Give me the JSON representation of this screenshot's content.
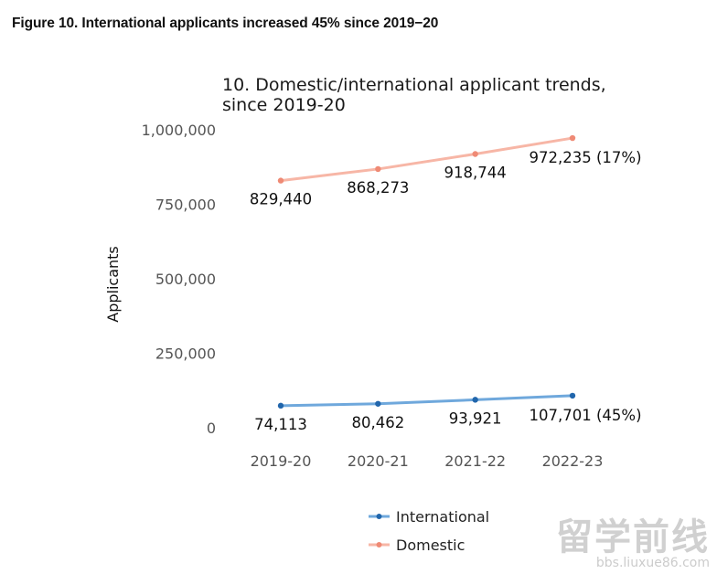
{
  "figure": {
    "caption": "Figure 10. International applicants increased 45% since 2019−20"
  },
  "chart_data": {
    "type": "line",
    "title_lines": [
      "10. Domestic/international applicant trends,",
      "since 2019-20"
    ],
    "ylabel": "Applicants",
    "xlabel": "",
    "categories": [
      "2019-20",
      "2020-21",
      "2021-22",
      "2022-23"
    ],
    "ylim": [
      0,
      1000000
    ],
    "yticks": [
      0,
      250000,
      500000,
      750000,
      1000000
    ],
    "ytick_labels": [
      "0",
      "250,000",
      "500,000",
      "750,000",
      "1,000,000"
    ],
    "grid": false,
    "legend_position": "bottom",
    "series": [
      {
        "name": "International",
        "color": "#6fa8dc",
        "marker_color": "#2166ac",
        "values": [
          74113,
          80462,
          93921,
          107701
        ],
        "labels": [
          "74,113",
          "80,462",
          "93,921",
          "107,701 (45%)"
        ]
      },
      {
        "name": "Domestic",
        "color": "#f7b6a6",
        "marker_color": "#ef8a75",
        "values": [
          829440,
          868273,
          918744,
          972235
        ],
        "labels": [
          "829,440",
          "868,273",
          "918,744",
          "972,235 (17%)"
        ]
      }
    ]
  },
  "watermark": {
    "logo": "留学前线",
    "url": "bbs.liuxue86.com"
  }
}
